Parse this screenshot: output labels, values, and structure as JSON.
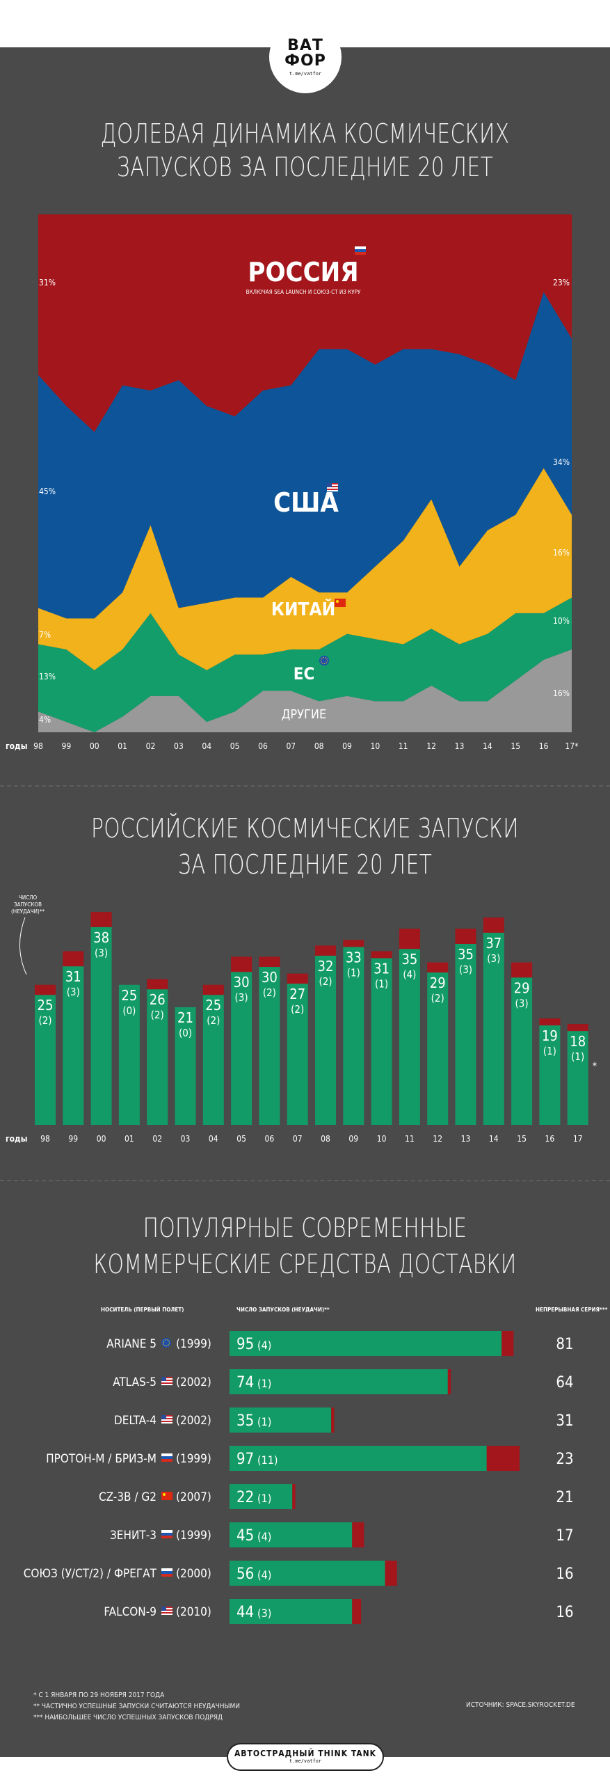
{
  "header": {
    "logo_line1": "ВАТ",
    "logo_line2": "ФОР",
    "logo_url": "t.me/vatfor"
  },
  "titles": {
    "share_line1": "ДОЛЕВАЯ ДИНАМИКА КОСМИЧЕСКИХ",
    "share_line2": "ЗАПУСКОВ ЗА ПОСЛЕДНИЕ 20 ЛЕТ",
    "ru_line1": "РОССИЙСКИЕ КОСМИЧЕСКИЕ ЗАПУСКИ",
    "ru_line2": "ЗА ПОСЛЕДНИЕ 20 ЛЕТ",
    "com_line1": "ПОПУЛЯРНЫЕ СОВРЕМЕННЫЕ",
    "com_line2": "КОММЕРЧЕСКИЕ СРЕДСТВА ДОСТАВКИ"
  },
  "colors": {
    "russia": "#a3161b",
    "usa": "#0d5499",
    "china": "#f2b21b",
    "eu": "#139d6b",
    "other": "#999999",
    "bar_green": "#129b67",
    "bar_red": "#a3161b"
  },
  "chart_data": [
    {
      "type": "area",
      "stacked_percent": true,
      "x_label": "годы",
      "x": [
        "98",
        "99",
        "00",
        "01",
        "02",
        "03",
        "04",
        "05",
        "06",
        "07",
        "08",
        "09",
        "10",
        "11",
        "12",
        "13",
        "14",
        "15",
        "16",
        "17*"
      ],
      "series": [
        {
          "name": "ДРУГИЕ",
          "values": [
            4,
            2,
            0,
            3,
            7,
            7,
            2,
            4,
            8,
            8,
            6,
            7,
            6,
            6,
            9,
            6,
            6,
            10,
            14,
            16
          ]
        },
        {
          "name": "ЕС",
          "values": [
            13,
            14,
            12,
            13,
            16,
            8,
            10,
            11,
            7,
            8,
            10,
            12,
            12,
            11,
            11,
            11,
            13,
            13,
            9,
            10
          ]
        },
        {
          "name": "КИТАЙ",
          "values": [
            7,
            6,
            10,
            11,
            17,
            9,
            13,
            11,
            11,
            14,
            11,
            8,
            14,
            20,
            25,
            15,
            20,
            19,
            28,
            16
          ]
        },
        {
          "name": "США",
          "values": [
            45,
            41,
            36,
            40,
            26,
            44,
            38,
            35,
            40,
            37,
            47,
            47,
            39,
            37,
            29,
            41,
            32,
            26,
            34,
            34
          ]
        },
        {
          "name": "РОССИЯ",
          "values": [
            31,
            37,
            42,
            33,
            34,
            32,
            37,
            39,
            34,
            33,
            26,
            26,
            29,
            26,
            26,
            27,
            29,
            32,
            15,
            23
          ]
        }
      ],
      "edge_labels_left": {
        "РОССИЯ": "31%",
        "США": "45%",
        "КИТАЙ": "7%",
        "ЕС": "13%",
        "ДРУГИЕ": "4%"
      },
      "edge_labels_right": {
        "РОССИЯ": "23%",
        "США": "34%",
        "КИТАЙ": "16%",
        "ЕС": "10%",
        "ДРУГИЕ": "16%"
      },
      "russia_note": "ВКЛЮЧАЯ SEA LAUNCH И СОЮЗ-СТ ИЗ КУРУ"
    },
    {
      "type": "bar",
      "x_label": "годы",
      "note_label": "ЧИСЛО ЗАПУСКОВ (НЕУДАЧИ)**",
      "categories": [
        "98",
        "99",
        "00",
        "01",
        "02",
        "03",
        "04",
        "05",
        "06",
        "07",
        "08",
        "09",
        "10",
        "11",
        "12",
        "13",
        "14",
        "15",
        "16",
        "17"
      ],
      "launches": [
        25,
        31,
        38,
        25,
        26,
        21,
        25,
        30,
        30,
        27,
        32,
        33,
        31,
        35,
        29,
        35,
        37,
        29,
        19,
        18
      ],
      "failures": [
        2,
        3,
        3,
        0,
        2,
        0,
        2,
        3,
        2,
        2,
        2,
        1,
        1,
        4,
        2,
        3,
        3,
        3,
        1,
        1
      ],
      "asterisk_last": "*"
    },
    {
      "type": "table",
      "headers": {
        "carrier": "НОСИТЕЛЬ (ПЕРВЫЙ ПОЛЕТ)",
        "launches": "ЧИСЛО ЗАПУСКОВ (НЕУДАЧИ)**",
        "streak": "НЕПРЕРЫВНАЯ СЕРИЯ***"
      },
      "rows": [
        {
          "name": "ARIANE 5",
          "flag": "eu-flag-icon",
          "year": "(1999)",
          "launches": 95,
          "failures": 4,
          "streak": 81
        },
        {
          "name": "ATLAS-5",
          "flag": "us-flag-icon",
          "year": "(2002)",
          "launches": 74,
          "failures": 1,
          "streak": 64
        },
        {
          "name": "DELTA-4",
          "flag": "us-flag-icon",
          "year": "(2002)",
          "launches": 35,
          "failures": 1,
          "streak": 31
        },
        {
          "name": "ПРОТОН-М / БРИЗ-М",
          "flag": "ru-flag-icon",
          "year": "(1999)",
          "launches": 97,
          "failures": 11,
          "streak": 23
        },
        {
          "name": "CZ-3B / G2",
          "flag": "cn-flag-icon",
          "year": "(2007)",
          "launches": 22,
          "failures": 1,
          "streak": 21
        },
        {
          "name": "ЗЕНИТ-3",
          "flag": "ru-flag-icon",
          "year": "(1999)",
          "launches": 45,
          "failures": 4,
          "streak": 17
        },
        {
          "name": "СОЮЗ (У/СТ/2) / ФРЕГАТ",
          "flag": "ru-flag-icon",
          "year": "(2000)",
          "launches": 56,
          "failures": 4,
          "streak": 16
        },
        {
          "name": "FALCON-9",
          "flag": "us-flag-icon",
          "year": "(2010)",
          "launches": 44,
          "failures": 3,
          "streak": 16
        }
      ]
    }
  ],
  "footer": {
    "note1": "* С 1 ЯНВАРЯ ПО 29 НОЯБРЯ 2017 ГОДА",
    "note2": "** ЧАСТИЧНО УСПЕШНЫЕ ЗАПУСКИ СЧИТАЮТСЯ НЕУДАЧНЫМИ",
    "note3": "*** НАИБОЛЬШЕЕ ЧИСЛО УСПЕШНЫХ ЗАПУСКОВ ПОДРЯД",
    "source": "ИСТОЧНИК: SPACE.SKYROCKET.DE",
    "tank_line1": "АВТОСТРАДНЫЙ THINK TANK",
    "tank_line2": "t.me/vatfor"
  }
}
